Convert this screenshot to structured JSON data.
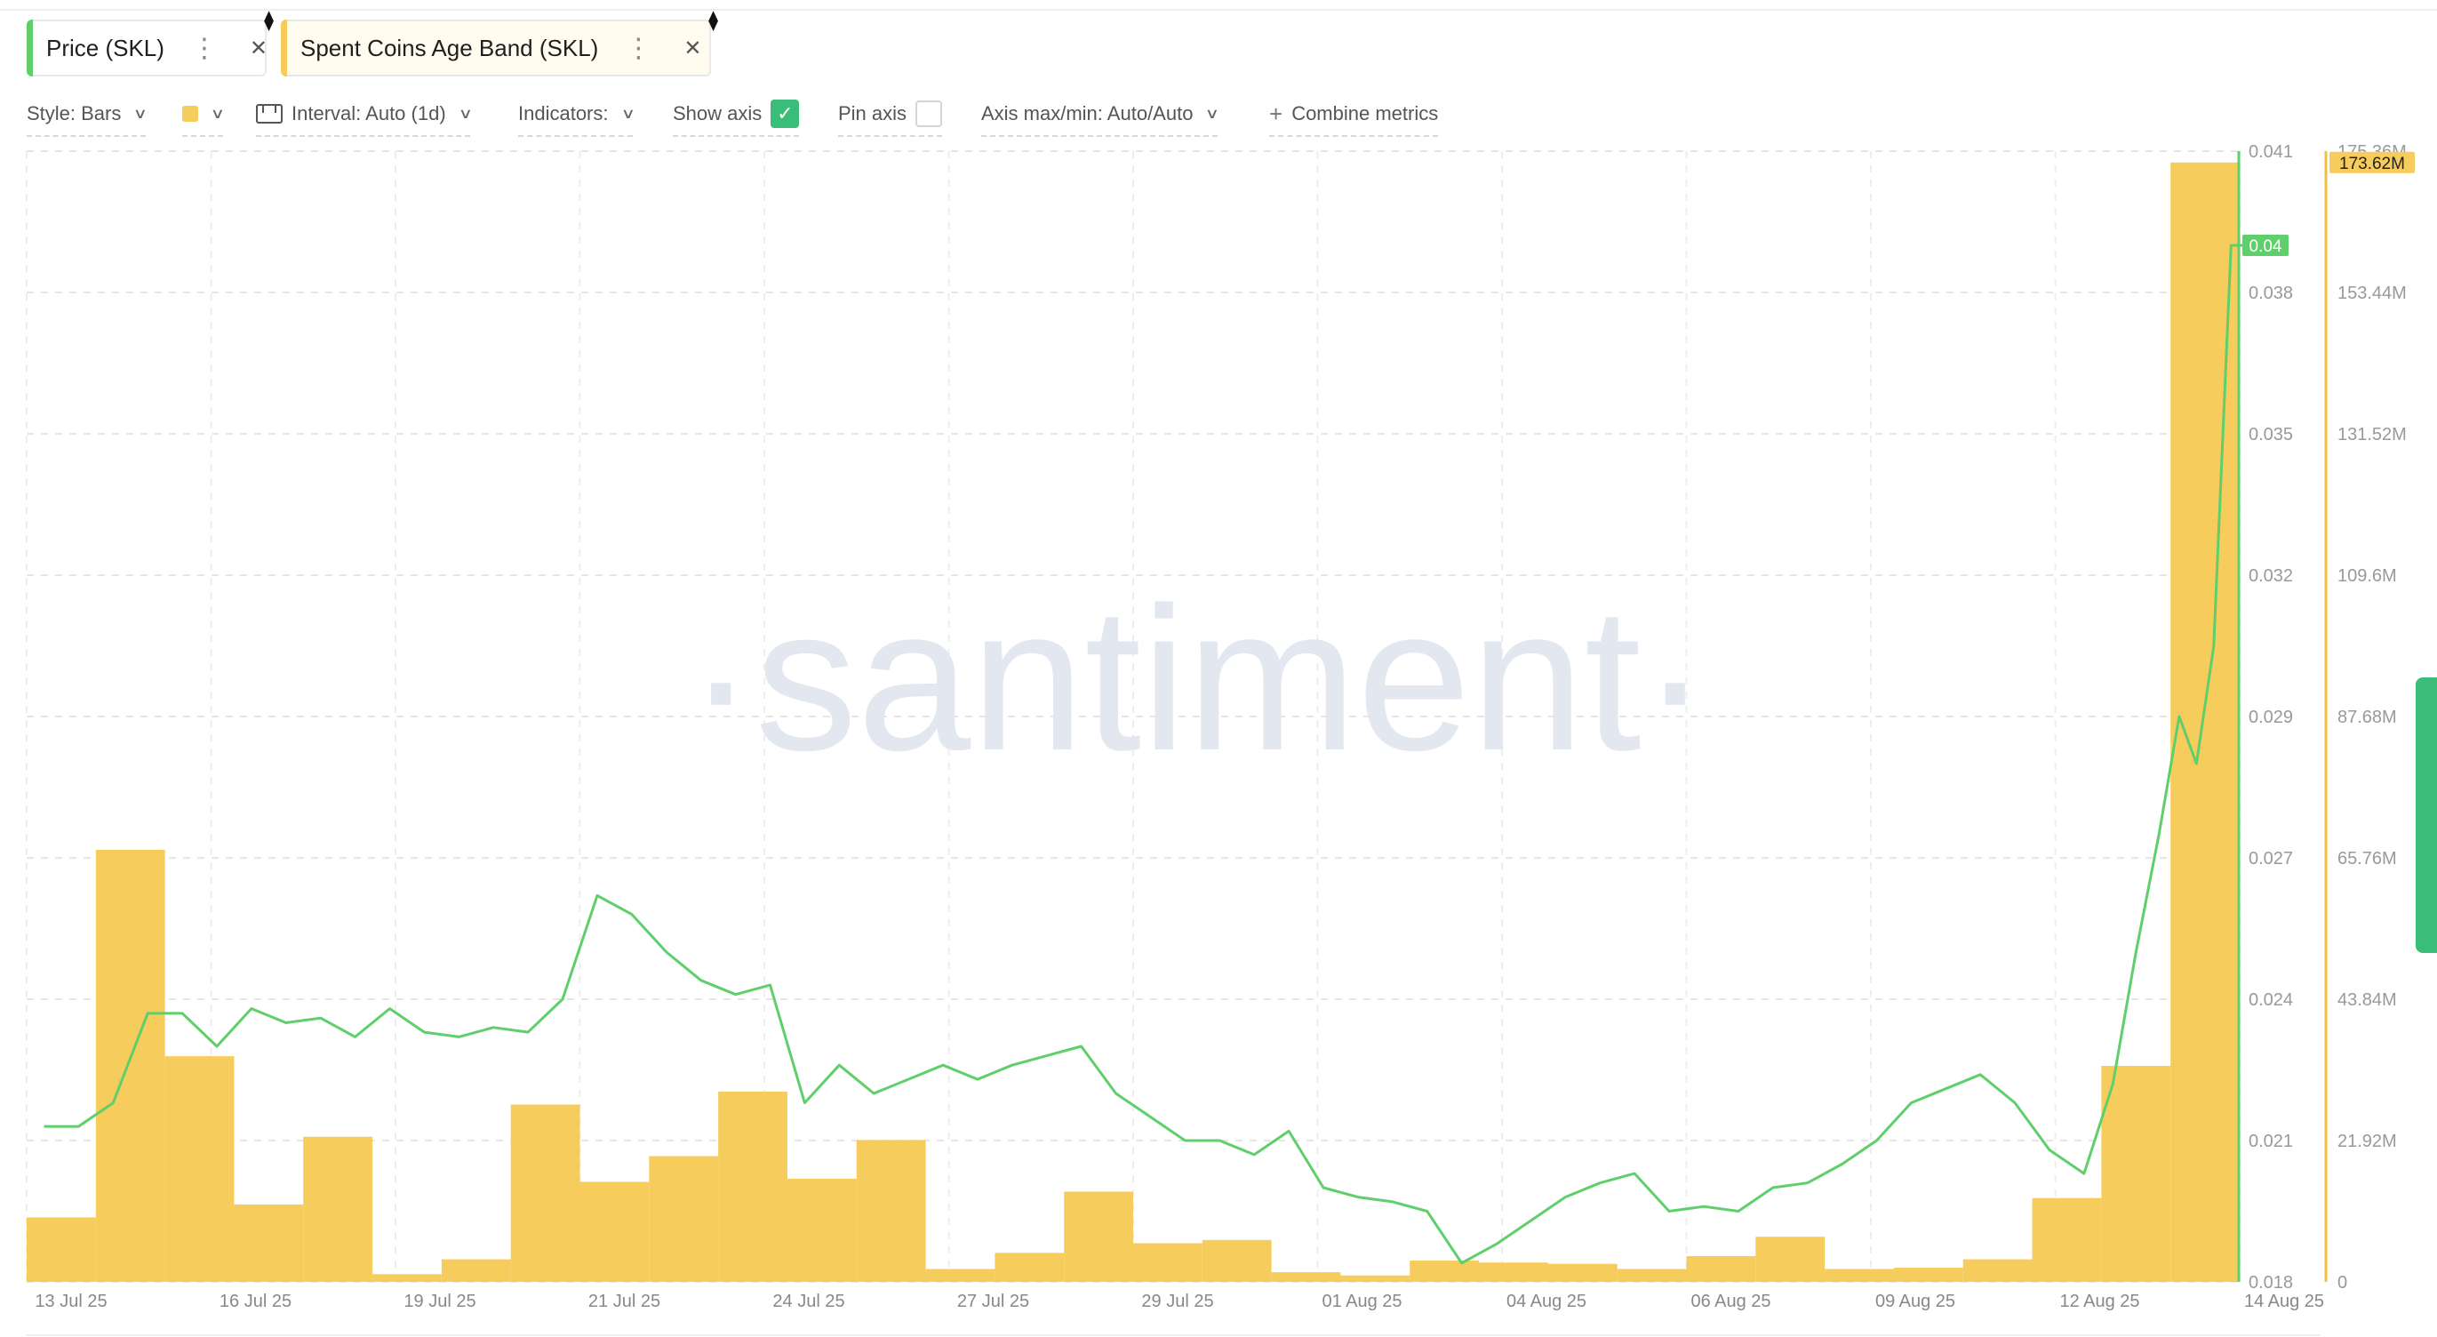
{
  "tabs": [
    {
      "label": "Price (SKL)",
      "color": "#5fcf6b"
    },
    {
      "label": "Spent Coins Age Band (SKL)",
      "color": "#f6cc5c"
    }
  ],
  "toolbar": {
    "style_label": "Style: Bars",
    "interval_label": "Interval: Auto (1d)",
    "indicators_label": "Indicators:",
    "show_axis_label": "Show axis",
    "show_axis_checked": true,
    "pin_axis_label": "Pin axis",
    "pin_axis_checked": false,
    "axis_maxmin_label": "Axis max/min: Auto/Auto",
    "combine_label": "Combine metrics",
    "plus": "+"
  },
  "icons": {
    "tab_menu": "⋮",
    "tab_close": "✕",
    "tab_diamond": "⧫",
    "checkmark": "✓",
    "chevron": "∨"
  },
  "watermark": "·santiment·",
  "chart_data": {
    "type": "bar",
    "x_tick_labels": [
      "13 Jul 25",
      "16 Jul 25",
      "19 Jul 25",
      "21 Jul 25",
      "24 Jul 25",
      "27 Jul 25",
      "29 Jul 25",
      "01 Aug 25",
      "04 Aug 25",
      "06 Aug 25",
      "09 Aug 25",
      "12 Aug 25",
      "14 Aug 25"
    ],
    "price_axis": {
      "ticks": [
        "0.041",
        "0.038",
        "0.035",
        "0.032",
        "0.029",
        "0.027",
        "0.024",
        "0.021",
        "0.018"
      ],
      "range": [
        0.018,
        0.042
      ],
      "color": "#5fcf6b",
      "current_label": "0.04"
    },
    "volume_axis": {
      "ticks": [
        "175.36M",
        "153.44M",
        "131.52M",
        "109.6M",
        "87.68M",
        "65.76M",
        "43.84M",
        "21.92M",
        "0"
      ],
      "range": [
        0,
        175.36
      ],
      "color": "#f0c040",
      "current_label": "173.62M"
    },
    "series": [
      {
        "name": "Spent Coins Age Band (SKL)",
        "kind": "bar",
        "color": "#f6cc5c",
        "dates": [
          "2025-07-13",
          "2025-07-14",
          "2025-07-15",
          "2025-07-16",
          "2025-07-17",
          "2025-07-18",
          "2025-07-19",
          "2025-07-20",
          "2025-07-21",
          "2025-07-22",
          "2025-07-23",
          "2025-07-24",
          "2025-07-25",
          "2025-07-26",
          "2025-07-27",
          "2025-07-28",
          "2025-07-29",
          "2025-07-30",
          "2025-07-31",
          "2025-08-01",
          "2025-08-02",
          "2025-08-03",
          "2025-08-04",
          "2025-08-05",
          "2025-08-06",
          "2025-08-07",
          "2025-08-08",
          "2025-08-09",
          "2025-08-10",
          "2025-08-11",
          "2025-08-12",
          "2025-08-13",
          "2025-08-14"
        ],
        "values": [
          10.0,
          67.0,
          35.0,
          12.0,
          22.5,
          1.2,
          3.5,
          27.5,
          15.5,
          19.5,
          29.5,
          16.0,
          22.0,
          2.0,
          4.5,
          14.0,
          6.0,
          6.5,
          1.5,
          1.0,
          3.3,
          3.0,
          2.8,
          2.0,
          4.0,
          7.0,
          2.0,
          2.2,
          3.5,
          13.0,
          33.5,
          173.6,
          0
        ]
      },
      {
        "name": "Price (SKL)",
        "kind": "line",
        "color": "#5fcf6b",
        "dates": [
          "2025-07-13",
          "2025-07-13",
          "2025-07-14",
          "2025-07-14",
          "2025-07-15",
          "2025-07-15",
          "2025-07-16",
          "2025-07-16",
          "2025-07-17",
          "2025-07-17",
          "2025-07-18",
          "2025-07-18",
          "2025-07-19",
          "2025-07-19",
          "2025-07-20",
          "2025-07-20",
          "2025-07-21",
          "2025-07-21",
          "2025-07-22",
          "2025-07-22",
          "2025-07-23",
          "2025-07-23",
          "2025-07-24",
          "2025-07-24",
          "2025-07-25",
          "2025-07-25",
          "2025-07-26",
          "2025-07-26",
          "2025-07-27",
          "2025-07-27",
          "2025-07-28",
          "2025-07-28",
          "2025-07-29",
          "2025-07-29",
          "2025-07-30",
          "2025-07-30",
          "2025-07-31",
          "2025-07-31",
          "2025-08-01",
          "2025-08-01",
          "2025-08-02",
          "2025-08-02",
          "2025-08-03",
          "2025-08-03",
          "2025-08-04",
          "2025-08-04",
          "2025-08-05",
          "2025-08-05",
          "2025-08-06",
          "2025-08-06",
          "2025-08-07",
          "2025-08-07",
          "2025-08-08",
          "2025-08-08",
          "2025-08-09",
          "2025-08-09",
          "2025-08-10",
          "2025-08-10",
          "2025-08-11",
          "2025-08-11",
          "2025-08-12",
          "2025-08-12",
          "2025-08-12",
          "2025-08-13",
          "2025-08-13",
          "2025-08-13",
          "2025-08-13",
          "2025-08-14"
        ],
        "values": [
          0.0213,
          0.0213,
          0.0218,
          0.0237,
          0.0237,
          0.023,
          0.0238,
          0.0235,
          0.0236,
          0.0232,
          0.0238,
          0.0233,
          0.0232,
          0.0234,
          0.0233,
          0.024,
          0.0262,
          0.0258,
          0.025,
          0.0244,
          0.0241,
          0.0243,
          0.0218,
          0.0226,
          0.022,
          0.0223,
          0.0226,
          0.0223,
          0.0226,
          0.0228,
          0.023,
          0.022,
          0.0215,
          0.021,
          0.021,
          0.0207,
          0.0212,
          0.02,
          0.0198,
          0.0197,
          0.0195,
          0.0184,
          0.0188,
          0.0193,
          0.0198,
          0.0201,
          0.0203,
          0.0195,
          0.0196,
          0.0195,
          0.02,
          0.0201,
          0.0205,
          0.021,
          0.0218,
          0.0221,
          0.0224,
          0.0218,
          0.0208,
          0.0203,
          0.0222,
          0.025,
          0.0275,
          0.03,
          0.029,
          0.0315,
          0.04,
          0.04
        ]
      }
    ],
    "ylim": [
      0,
      175.36
    ],
    "grid": true,
    "title": "",
    "xlabel": "",
    "ylabel": ""
  }
}
